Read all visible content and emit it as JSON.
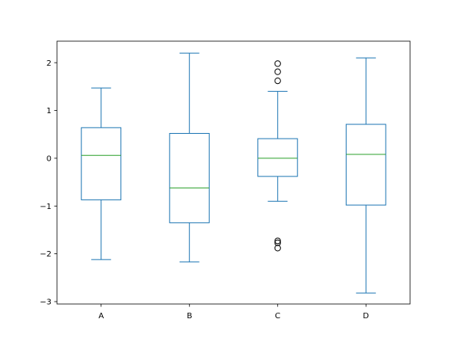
{
  "chart_data": {
    "type": "box",
    "categories": [
      "A",
      "B",
      "C",
      "D"
    ],
    "boxes": [
      {
        "category": "A",
        "whisker_low": -2.12,
        "q1": -0.87,
        "median": 0.06,
        "q3": 0.64,
        "whisker_high": 1.47,
        "outliers": []
      },
      {
        "category": "B",
        "whisker_low": -2.17,
        "q1": -1.35,
        "median": -0.62,
        "q3": 0.52,
        "whisker_high": 2.2,
        "outliers": []
      },
      {
        "category": "C",
        "whisker_low": -0.9,
        "q1": -0.38,
        "median": 0.0,
        "q3": 0.41,
        "whisker_high": 1.4,
        "outliers": [
          1.98,
          1.81,
          1.62,
          -1.73,
          -1.77,
          -1.88
        ]
      },
      {
        "category": "D",
        "whisker_low": -2.82,
        "q1": -0.98,
        "median": 0.08,
        "q3": 0.71,
        "whisker_high": 2.1,
        "outliers": []
      }
    ],
    "y_ticks": [
      -3,
      -2,
      -1,
      0,
      1,
      2
    ],
    "y_tick_labels": [
      "−3",
      "−2",
      "−1",
      "0",
      "1",
      "2"
    ],
    "ylim": [
      -3.05,
      2.45
    ],
    "title": "",
    "xlabel": "",
    "ylabel": "",
    "grid": false,
    "colors": {
      "box": "#1f77b4",
      "median": "#2ca02c",
      "outlier": "#000000",
      "axes": "#000000"
    }
  }
}
